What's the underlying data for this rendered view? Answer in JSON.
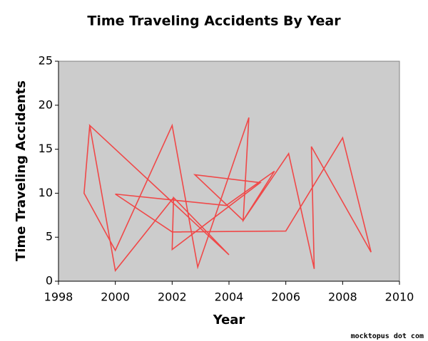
{
  "chart_data": {
    "type": "line",
    "title": "Time Traveling Accidents By Year",
    "x_label": "Year",
    "y_label": "Time Traveling Accidents",
    "xlim": [
      1998,
      2010
    ],
    "xticks": [
      1998,
      2000,
      2002,
      2004,
      2006,
      2008,
      2010
    ],
    "ylim": [
      0,
      25
    ],
    "yticks": [
      0,
      5,
      10,
      15,
      20,
      25
    ],
    "background": "#cccccc",
    "series": [
      {
        "color": "#f04848",
        "x": [
          1999.1,
          1998.9,
          2000.0,
          2002.0,
          2002.9,
          2004.7,
          2004.5,
          2006.1,
          2007.0,
          2006.9,
          2009.0,
          2008.0,
          2006.0,
          2002.0,
          2000.0,
          2003.9,
          2005.6,
          2004.5,
          2002.8,
          2005.1,
          2002.0,
          2002.05,
          2004.0,
          1999.1,
          2000.0,
          2002.05
        ],
        "values": [
          17.7,
          10.0,
          3.5,
          17.7,
          1.6,
          18.6,
          6.9,
          14.5,
          1.4,
          15.3,
          3.3,
          16.3,
          5.7,
          5.6,
          9.9,
          8.6,
          12.5,
          6.9,
          12.1,
          11.2,
          3.6,
          9.5,
          3.0,
          17.7,
          1.2,
          9.5
        ]
      }
    ],
    "watermark": "mocktopus dot com"
  }
}
